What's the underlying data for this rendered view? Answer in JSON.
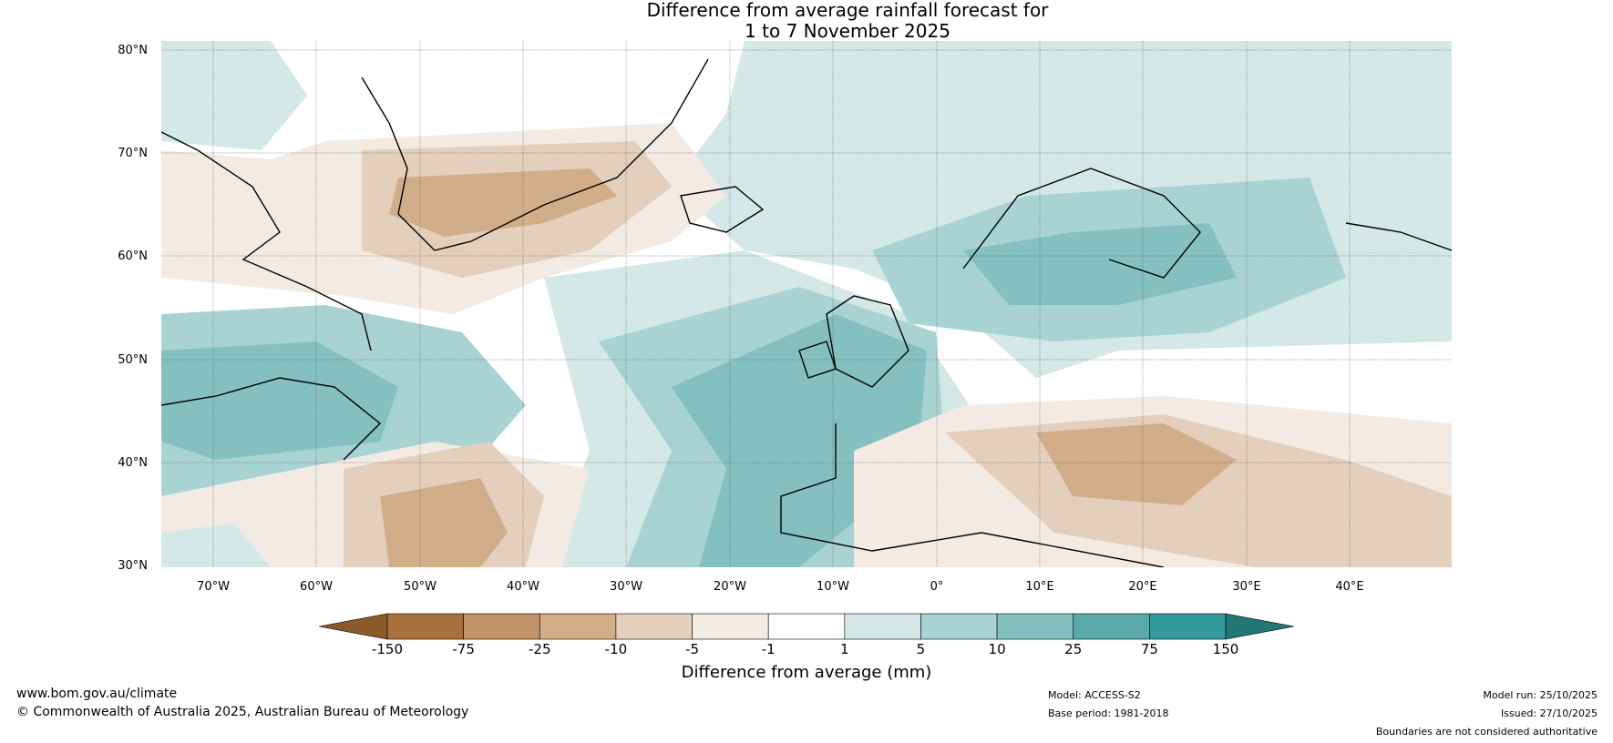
{
  "title_line1": "Difference from average rainfall forecast for",
  "title_line2": "1 to 7 November 2025",
  "lat_ticks": [
    "80°N",
    "70°N",
    "60°N",
    "50°N",
    "40°N",
    "30°N"
  ],
  "lon_ticks": [
    "70°W",
    "60°W",
    "50°W",
    "40°W",
    "30°W",
    "20°W",
    "10°W",
    "0°",
    "10°E",
    "20°E",
    "30°E",
    "40°E"
  ],
  "colorbar": {
    "label": "Difference from average (mm)",
    "ticks": [
      "-150",
      "-75",
      "-25",
      "-10",
      "-5",
      "-1",
      "1",
      "5",
      "10",
      "25",
      "75",
      "150"
    ],
    "colors": [
      "#8b5a2b",
      "#a8713d",
      "#bf9268",
      "#d2ad89",
      "#e3cfbc",
      "#f3ebe3",
      "#ffffff",
      "#d4e8e7",
      "#a9d3d2",
      "#85c0c0",
      "#5aaaaa",
      "#33999a",
      "#227777"
    ]
  },
  "footer": {
    "website": "www.bom.gov.au/climate",
    "copyright": "© Commonwealth of Australia 2025, Australian Bureau of Meteorology",
    "model": "Model: ACCESS-S2",
    "base_period": "Base period: 1981-2018",
    "model_run": "Model run: 25/10/2025",
    "issued": "Issued: 27/10/2025",
    "disclaimer": "Boundaries are not considered authoritative"
  }
}
